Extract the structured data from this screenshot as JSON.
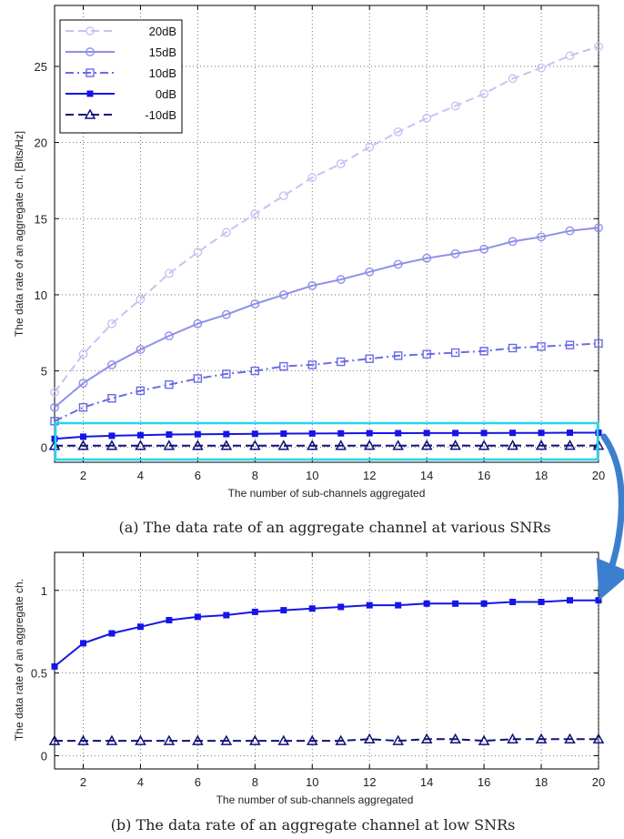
{
  "captions": {
    "a": "(a) The data rate of an aggregate channel at various SNRs",
    "b": "(b) The data rate of an aggregate channel at low SNRs"
  },
  "colors": {
    "s20": "#c4c4f2",
    "s15": "#8f8fea",
    "s10": "#6a6ae6",
    "s0": "#1515e6",
    "sm10": "#10107a",
    "highlight": "#22d6ee",
    "arrow": "#3d7fcf"
  },
  "chart_data": [
    {
      "type": "line",
      "xlabel": "The number of sub-channels aggregated",
      "ylabel": "The data rate of an aggregate ch. [Bits/Hz]",
      "xlim": [
        1,
        20
      ],
      "ylim": [
        -1,
        29
      ],
      "xticks": [
        2,
        4,
        6,
        8,
        10,
        12,
        14,
        16,
        18,
        20
      ],
      "yticks": [
        0,
        5,
        10,
        15,
        20,
        25
      ],
      "grid": true,
      "legend": "top-left",
      "x": [
        1,
        2,
        3,
        4,
        5,
        6,
        7,
        8,
        9,
        10,
        11,
        12,
        13,
        14,
        15,
        16,
        17,
        18,
        19,
        20
      ],
      "series": [
        {
          "name": "20dB",
          "style": "dashed",
          "marker": "circle",
          "color_key": "s20",
          "values": [
            3.6,
            6.1,
            8.1,
            9.7,
            11.4,
            12.8,
            14.1,
            15.3,
            16.5,
            17.7,
            18.6,
            19.7,
            20.7,
            21.6,
            22.4,
            23.2,
            24.2,
            24.9,
            25.7,
            26.3
          ]
        },
        {
          "name": "15dB",
          "style": "solid",
          "marker": "circle",
          "color_key": "s15",
          "values": [
            2.6,
            4.2,
            5.4,
            6.4,
            7.3,
            8.1,
            8.7,
            9.4,
            10.0,
            10.6,
            11.0,
            11.5,
            12.0,
            12.4,
            12.7,
            13.0,
            13.5,
            13.8,
            14.2,
            14.4
          ]
        },
        {
          "name": "10dB",
          "style": "dashdot",
          "marker": "square",
          "color_key": "s10",
          "values": [
            1.7,
            2.6,
            3.2,
            3.7,
            4.1,
            4.5,
            4.8,
            5.0,
            5.3,
            5.4,
            5.6,
            5.8,
            6.0,
            6.1,
            6.2,
            6.3,
            6.5,
            6.6,
            6.7,
            6.8
          ]
        },
        {
          "name": "0dB",
          "style": "solid",
          "marker": "filled-square",
          "color_key": "s0",
          "values": [
            0.54,
            0.68,
            0.74,
            0.78,
            0.82,
            0.84,
            0.85,
            0.87,
            0.88,
            0.89,
            0.9,
            0.91,
            0.91,
            0.92,
            0.92,
            0.92,
            0.93,
            0.93,
            0.94,
            0.94
          ]
        },
        {
          "name": "-10dB",
          "style": "dashed",
          "marker": "triangle",
          "color_key": "sm10",
          "values": [
            0.09,
            0.09,
            0.09,
            0.09,
            0.09,
            0.09,
            0.09,
            0.09,
            0.09,
            0.09,
            0.09,
            0.1,
            0.09,
            0.1,
            0.1,
            0.09,
            0.1,
            0.1,
            0.1,
            0.1
          ]
        }
      ]
    },
    {
      "type": "line",
      "xlabel": "The number of sub-channels aggregated",
      "ylabel": "The data rate of an aggregate ch.",
      "xlim": [
        1,
        20
      ],
      "ylim": [
        -0.08,
        1.23
      ],
      "xticks": [
        2,
        4,
        6,
        8,
        10,
        12,
        14,
        16,
        18,
        20
      ],
      "yticks": [
        0,
        0.5,
        1
      ],
      "grid": true,
      "x": [
        1,
        2,
        3,
        4,
        5,
        6,
        7,
        8,
        9,
        10,
        11,
        12,
        13,
        14,
        15,
        16,
        17,
        18,
        19,
        20
      ],
      "series": [
        {
          "style": "solid",
          "marker": "filled-square",
          "color_key": "s0",
          "values": [
            0.54,
            0.68,
            0.74,
            0.78,
            0.82,
            0.84,
            0.85,
            0.87,
            0.88,
            0.89,
            0.9,
            0.91,
            0.91,
            0.92,
            0.92,
            0.92,
            0.93,
            0.93,
            0.94,
            0.94
          ]
        },
        {
          "style": "dashed",
          "marker": "triangle",
          "color_key": "sm10",
          "values": [
            0.09,
            0.09,
            0.09,
            0.09,
            0.09,
            0.09,
            0.09,
            0.09,
            0.09,
            0.09,
            0.09,
            0.1,
            0.09,
            0.1,
            0.1,
            0.09,
            0.1,
            0.1,
            0.1,
            0.1
          ]
        }
      ]
    }
  ]
}
